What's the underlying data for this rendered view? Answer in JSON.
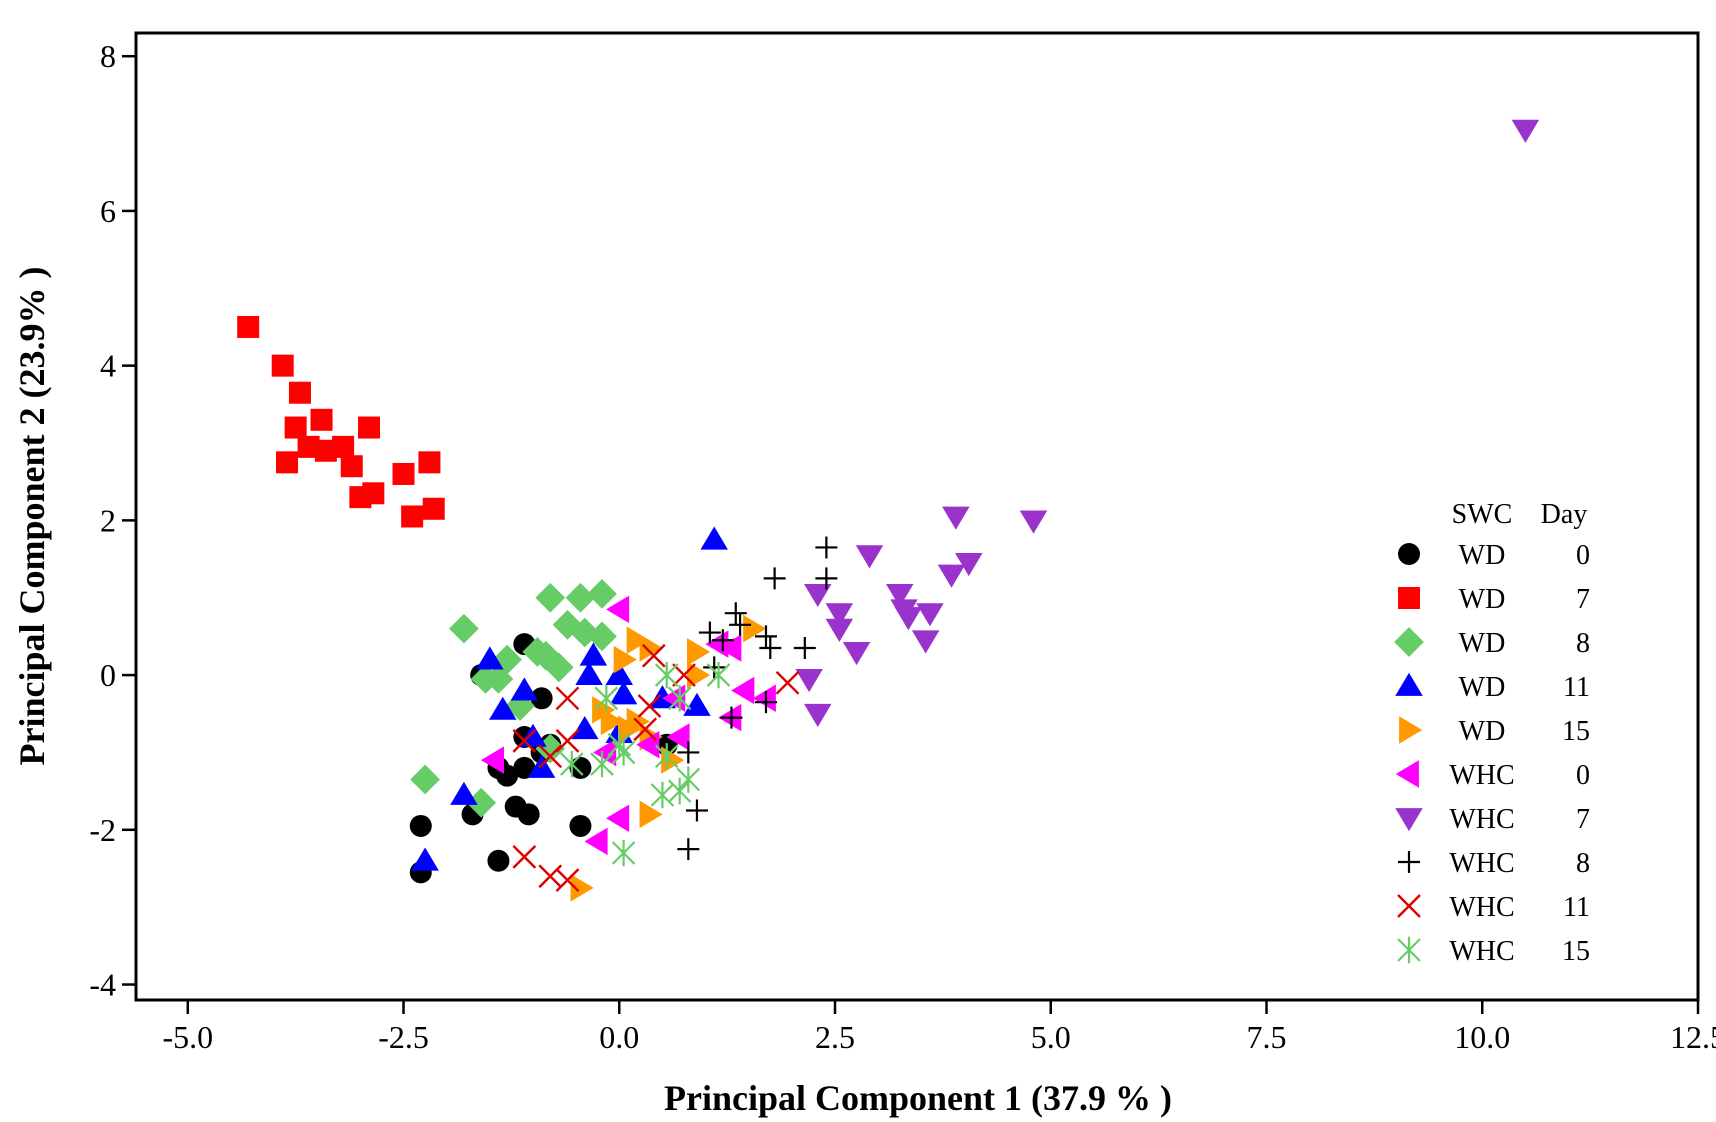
{
  "chart_data": {
    "type": "scatter",
    "title": "",
    "xlabel": "Principal Component 1 (37.9 % )",
    "ylabel": "Principal Component 2 (23.9% )",
    "xlim": [
      -5.6,
      12.5
    ],
    "ylim": [
      -4.2,
      8.3
    ],
    "x_ticks": [
      "-5.0",
      "-2.5",
      "0.0",
      "2.5",
      "5.0",
      "7.5",
      "10.0",
      "12.5"
    ],
    "x_tick_values": [
      -5.0,
      -2.5,
      0.0,
      2.5,
      5.0,
      7.5,
      10.0,
      12.5
    ],
    "y_ticks": [
      "-4",
      "-2",
      "0",
      "2",
      "4",
      "6",
      "8"
    ],
    "y_tick_values": [
      -4,
      -2,
      0,
      2,
      4,
      6,
      8
    ],
    "grid": false,
    "legend": {
      "placement": "right",
      "header_swc": "SWC",
      "header_day": "Day"
    },
    "series": [
      {
        "swc": "WD",
        "day": "0",
        "marker": "circle",
        "color": "#000000",
        "points": [
          [
            -1.1,
            0.4
          ],
          [
            -1.6,
            0.0
          ],
          [
            -1.4,
            -1.2
          ],
          [
            -1.3,
            -1.3
          ],
          [
            -1.1,
            -0.8
          ],
          [
            -1.1,
            -1.2
          ],
          [
            -0.9,
            -0.3
          ],
          [
            -0.8,
            -0.9
          ],
          [
            -0.9,
            -1.0
          ],
          [
            -1.2,
            -1.7
          ],
          [
            -1.05,
            -1.8
          ],
          [
            -1.7,
            -1.8
          ],
          [
            -2.3,
            -1.95
          ],
          [
            -2.3,
            -2.55
          ],
          [
            -1.4,
            -2.4
          ],
          [
            -0.45,
            -1.2
          ],
          [
            -0.45,
            -1.95
          ],
          [
            0.55,
            -0.9
          ]
        ]
      },
      {
        "swc": "WD",
        "day": "7",
        "marker": "square",
        "color": "#ff0000",
        "points": [
          [
            -4.3,
            4.5
          ],
          [
            -3.9,
            4.0
          ],
          [
            -3.7,
            3.65
          ],
          [
            -3.75,
            3.2
          ],
          [
            -3.45,
            3.3
          ],
          [
            -3.85,
            2.75
          ],
          [
            -3.6,
            2.95
          ],
          [
            -3.4,
            2.9
          ],
          [
            -3.2,
            2.95
          ],
          [
            -3.1,
            2.7
          ],
          [
            -2.9,
            3.2
          ],
          [
            -3.0,
            2.3
          ],
          [
            -2.85,
            2.35
          ],
          [
            -2.5,
            2.6
          ],
          [
            -2.2,
            2.75
          ],
          [
            -2.4,
            2.05
          ],
          [
            -2.15,
            2.15
          ]
        ]
      },
      {
        "swc": "WD",
        "day": "8",
        "marker": "diamond",
        "color": "#66cc66",
        "points": [
          [
            -1.8,
            0.6
          ],
          [
            -0.8,
            1.0
          ],
          [
            -0.45,
            1.0
          ],
          [
            -0.2,
            1.05
          ],
          [
            -0.6,
            0.65
          ],
          [
            -0.4,
            0.55
          ],
          [
            -0.2,
            0.5
          ],
          [
            -0.85,
            0.25
          ],
          [
            -0.7,
            0.1
          ],
          [
            -0.95,
            0.3
          ],
          [
            -1.3,
            0.2
          ],
          [
            -1.55,
            -0.05
          ],
          [
            -1.4,
            -0.05
          ],
          [
            -1.15,
            -0.4
          ],
          [
            -0.8,
            -0.95
          ],
          [
            -1.6,
            -1.65
          ],
          [
            -2.25,
            -1.35
          ]
        ]
      },
      {
        "swc": "WD",
        "day": "11",
        "marker": "triangle-up",
        "color": "#0000ff",
        "points": [
          [
            1.1,
            1.75
          ],
          [
            -1.5,
            0.2
          ],
          [
            -1.35,
            -0.45
          ],
          [
            -1.1,
            -0.2
          ],
          [
            -1.0,
            -0.8
          ],
          [
            -0.9,
            -1.2
          ],
          [
            -0.3,
            0.25
          ],
          [
            -0.35,
            0.0
          ],
          [
            0.0,
            0.0
          ],
          [
            -0.4,
            -0.7
          ],
          [
            0.0,
            -0.75
          ],
          [
            0.5,
            -0.3
          ],
          [
            0.9,
            -0.4
          ],
          [
            0.05,
            -0.25
          ],
          [
            -1.8,
            -1.55
          ],
          [
            -2.25,
            -2.4
          ]
        ]
      },
      {
        "swc": "WD",
        "day": "15",
        "marker": "triangle-right",
        "color": "#ff9900",
        "points": [
          [
            0.2,
            0.45
          ],
          [
            0.35,
            0.35
          ],
          [
            0.05,
            0.2
          ],
          [
            1.55,
            0.6
          ],
          [
            0.9,
            0.3
          ],
          [
            0.9,
            0.0
          ],
          [
            -0.2,
            -0.45
          ],
          [
            -0.1,
            -0.6
          ],
          [
            0.2,
            -0.6
          ],
          [
            0.1,
            -0.7
          ],
          [
            0.35,
            -0.8
          ],
          [
            0.6,
            -1.1
          ],
          [
            0.35,
            -1.8
          ],
          [
            -0.45,
            -2.75
          ]
        ]
      },
      {
        "swc": "WHC",
        "day": "0",
        "marker": "triangle-left",
        "color": "#ff00ff",
        "points": [
          [
            0.0,
            0.85
          ],
          [
            1.3,
            0.35
          ],
          [
            1.15,
            0.4
          ],
          [
            1.45,
            -0.2
          ],
          [
            1.7,
            -0.3
          ],
          [
            0.65,
            -0.3
          ],
          [
            1.3,
            -0.55
          ],
          [
            0.7,
            -0.8
          ],
          [
            0.35,
            -0.9
          ],
          [
            -0.15,
            -1.0
          ],
          [
            -1.45,
            -1.1
          ],
          [
            0.0,
            -1.85
          ],
          [
            -0.25,
            -2.15
          ]
        ]
      },
      {
        "swc": "WHC",
        "day": "7",
        "marker": "triangle-down",
        "color": "#9933cc",
        "points": [
          [
            10.5,
            7.05
          ],
          [
            3.9,
            2.05
          ],
          [
            4.8,
            2.0
          ],
          [
            2.9,
            1.55
          ],
          [
            4.05,
            1.45
          ],
          [
            3.85,
            1.3
          ],
          [
            2.3,
            1.05
          ],
          [
            3.25,
            1.05
          ],
          [
            3.3,
            0.85
          ],
          [
            3.35,
            0.75
          ],
          [
            2.55,
            0.8
          ],
          [
            3.6,
            0.8
          ],
          [
            2.55,
            0.6
          ],
          [
            3.55,
            0.45
          ],
          [
            2.75,
            0.3
          ],
          [
            2.2,
            -0.05
          ],
          [
            2.3,
            -0.5
          ]
        ]
      },
      {
        "swc": "WHC",
        "day": "8",
        "marker": "plus",
        "color": "#000000",
        "points": [
          [
            2.4,
            1.65
          ],
          [
            2.4,
            1.25
          ],
          [
            1.8,
            1.25
          ],
          [
            1.35,
            0.8
          ],
          [
            1.4,
            0.65
          ],
          [
            1.05,
            0.55
          ],
          [
            1.2,
            0.45
          ],
          [
            1.7,
            0.5
          ],
          [
            1.75,
            0.35
          ],
          [
            2.15,
            0.35
          ],
          [
            1.1,
            0.1
          ],
          [
            1.7,
            -0.35
          ],
          [
            1.3,
            -0.55
          ],
          [
            0.8,
            -1.0
          ],
          [
            0.9,
            -1.75
          ],
          [
            0.8,
            -2.25
          ]
        ]
      },
      {
        "swc": "WHC",
        "day": "11",
        "marker": "x",
        "color": "#dd0000",
        "points": [
          [
            0.4,
            0.25
          ],
          [
            0.75,
            0.0
          ],
          [
            1.95,
            -0.1
          ],
          [
            0.35,
            -0.4
          ],
          [
            -0.6,
            -0.3
          ],
          [
            -1.1,
            -0.85
          ],
          [
            -0.8,
            -1.05
          ],
          [
            -0.6,
            -0.85
          ],
          [
            0.3,
            -0.7
          ],
          [
            -1.1,
            -2.35
          ],
          [
            -0.8,
            -2.6
          ],
          [
            -0.6,
            -2.65
          ]
        ]
      },
      {
        "swc": "WHC",
        "day": "15",
        "marker": "asterisk",
        "color": "#66cc66",
        "points": [
          [
            0.55,
            0.0
          ],
          [
            1.15,
            0.0
          ],
          [
            0.7,
            -0.3
          ],
          [
            -0.15,
            -0.3
          ],
          [
            0.0,
            -0.9
          ],
          [
            0.05,
            -1.0
          ],
          [
            -0.2,
            -1.15
          ],
          [
            -0.55,
            -1.15
          ],
          [
            0.55,
            -1.05
          ],
          [
            0.8,
            -1.35
          ],
          [
            0.7,
            -1.5
          ],
          [
            0.5,
            -1.55
          ],
          [
            0.05,
            -2.3
          ]
        ]
      }
    ]
  }
}
